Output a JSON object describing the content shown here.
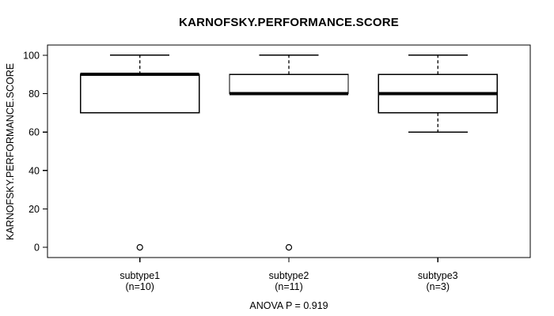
{
  "chart_data": {
    "type": "boxplot",
    "title": "KARNOFSKY.PERFORMANCE.SCORE",
    "ylabel": "KARNOFSKY.PERFORMANCE.SCORE",
    "xlabel": "",
    "annotation": "ANOVA P = 0.919",
    "ylim": [
      0,
      100
    ],
    "y_ticks": [
      0,
      20,
      40,
      60,
      80,
      100
    ],
    "grid": false,
    "legend": "none",
    "groups": [
      {
        "label": "subtype1",
        "sublabel": "(n=10)",
        "n": 10,
        "whisker_low": 70,
        "q1": 70,
        "median": 90,
        "q3": 90,
        "whisker_high": 100,
        "outliers": [
          0
        ]
      },
      {
        "label": "subtype2",
        "sublabel": "(n=11)",
        "n": 11,
        "whisker_low": 80,
        "q1": 80,
        "median": 80,
        "q3": 90,
        "whisker_high": 100,
        "outliers": [
          0
        ]
      },
      {
        "label": "subtype3",
        "sublabel": "(n=3)",
        "n": 3,
        "whisker_low": 60,
        "q1": 70,
        "median": 80,
        "q3": 90,
        "whisker_high": 100,
        "outliers": []
      }
    ],
    "colors": {
      "stroke": "#000000",
      "box_fill": "#ffffff",
      "background": "#ffffff"
    }
  }
}
